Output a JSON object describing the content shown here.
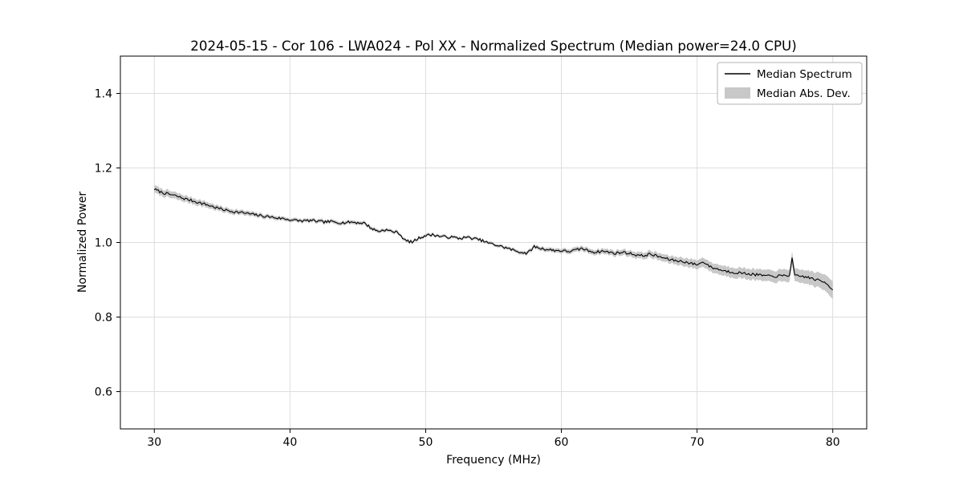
{
  "chart_data": {
    "type": "line",
    "title": "2024-05-15 - Cor 106 - LWA024 - Pol XX - Normalized Spectrum (Median power=24.0 CPU)",
    "xlabel": "Frequency (MHz)",
    "ylabel": "Normalized Power",
    "xlim": [
      27.5,
      82.5
    ],
    "ylim": [
      0.5,
      1.5
    ],
    "xticks": [
      30,
      40,
      50,
      60,
      70,
      80
    ],
    "xtick_labels": [
      "30",
      "40",
      "50",
      "60",
      "70",
      "80"
    ],
    "yticks": [
      0.6,
      0.8,
      1.0,
      1.2,
      1.4
    ],
    "ytick_labels": [
      "0.6",
      "0.8",
      "1.0",
      "1.2",
      "1.4"
    ],
    "grid": true,
    "legend": {
      "position": "upper right",
      "entries": [
        {
          "label": "Median Spectrum",
          "type": "line",
          "color": "#000000"
        },
        {
          "label": "Median Abs. Dev.",
          "type": "patch",
          "color": "#c8c8c8"
        }
      ]
    },
    "series": [
      {
        "name": "Median Spectrum",
        "color": "#000000",
        "x": [
          30.0,
          30.5,
          31.0,
          31.5,
          32.0,
          32.5,
          33.0,
          33.5,
          34.0,
          34.5,
          35.0,
          35.5,
          36.0,
          36.5,
          37.0,
          37.5,
          38.0,
          38.5,
          39.0,
          39.5,
          40.0,
          40.5,
          41.0,
          41.5,
          42.0,
          42.5,
          43.0,
          43.5,
          44.0,
          44.5,
          45.0,
          45.5,
          46.0,
          46.5,
          47.0,
          47.5,
          48.0,
          48.5,
          49.0,
          49.5,
          50.0,
          50.5,
          51.0,
          51.5,
          52.0,
          52.5,
          53.0,
          53.5,
          54.0,
          54.5,
          55.0,
          55.5,
          56.0,
          56.5,
          57.0,
          57.5,
          58.0,
          58.5,
          59.0,
          59.5,
          60.0,
          60.5,
          61.0,
          61.5,
          62.0,
          62.5,
          63.0,
          63.5,
          64.0,
          64.5,
          65.0,
          65.5,
          66.0,
          66.5,
          67.0,
          67.5,
          68.0,
          68.5,
          69.0,
          69.5,
          70.0,
          70.5,
          71.0,
          71.5,
          72.0,
          72.5,
          73.0,
          73.5,
          74.0,
          74.5,
          75.0,
          75.5,
          76.0,
          76.5,
          76.8,
          77.0,
          77.2,
          77.5,
          78.0,
          78.5,
          79.0,
          79.5,
          80.0
        ],
        "y": [
          1.143,
          1.135,
          1.13,
          1.126,
          1.12,
          1.115,
          1.11,
          1.105,
          1.1,
          1.094,
          1.089,
          1.085,
          1.082,
          1.08,
          1.077,
          1.074,
          1.071,
          1.069,
          1.066,
          1.064,
          1.061,
          1.059,
          1.058,
          1.059,
          1.057,
          1.055,
          1.056,
          1.054,
          1.053,
          1.055,
          1.053,
          1.052,
          1.038,
          1.03,
          1.034,
          1.03,
          1.026,
          1.005,
          1.001,
          1.012,
          1.019,
          1.021,
          1.017,
          1.015,
          1.014,
          1.011,
          1.014,
          1.011,
          1.007,
          1.0,
          0.995,
          0.99,
          0.985,
          0.979,
          0.974,
          0.971,
          0.989,
          0.984,
          0.981,
          0.979,
          0.978,
          0.976,
          0.979,
          0.984,
          0.978,
          0.974,
          0.977,
          0.974,
          0.971,
          0.974,
          0.971,
          0.967,
          0.964,
          0.969,
          0.964,
          0.959,
          0.954,
          0.951,
          0.949,
          0.944,
          0.941,
          0.948,
          0.934,
          0.929,
          0.924,
          0.921,
          0.919,
          0.917,
          0.915,
          0.913,
          0.911,
          0.909,
          0.91,
          0.911,
          0.912,
          0.957,
          0.91,
          0.91,
          0.908,
          0.903,
          0.898,
          0.892,
          0.874
        ]
      }
    ],
    "band": {
      "name": "Median Abs. Dev.",
      "color": "#c8c8c8",
      "x": [
        30,
        35,
        40,
        45,
        50,
        55,
        60,
        65,
        68,
        70,
        73,
        76,
        78,
        79,
        80
      ],
      "halfwidth": [
        0.01,
        0.007,
        0.005,
        0.005,
        0.004,
        0.004,
        0.006,
        0.008,
        0.01,
        0.012,
        0.014,
        0.016,
        0.018,
        0.02,
        0.024
      ]
    },
    "style": {
      "line_color": "#000000",
      "line_width": 1.1,
      "band_color": "#c8c8c8",
      "grid_color": "#dddddd",
      "spine_color": "#000000",
      "background": "#ffffff",
      "noise_amplitude": 0.0035,
      "seed": 7
    }
  }
}
